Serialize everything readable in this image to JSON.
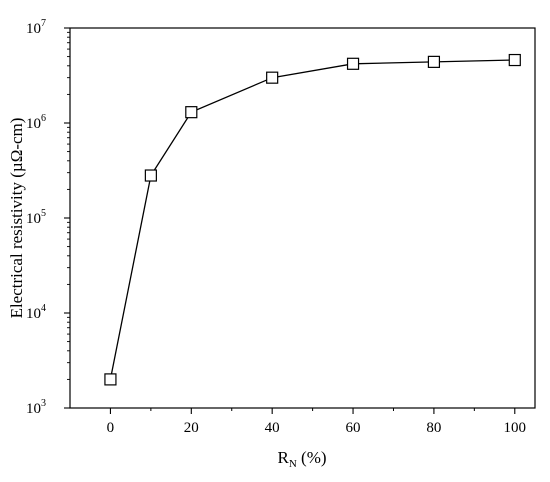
{
  "chart_data": {
    "type": "line",
    "title": "",
    "xlabel": {
      "main": "R",
      "sub": "N",
      "rest": " (%)"
    },
    "ylabel": "Electrical resistivity (µΩ-cm)",
    "xlim": [
      -10,
      105
    ],
    "ylim": [
      1000,
      10000000
    ],
    "yscale": "log",
    "x_ticks": [
      0,
      20,
      40,
      60,
      80,
      100
    ],
    "x_tick_labels": [
      "0",
      "20",
      "40",
      "60",
      "80",
      "100"
    ],
    "y_ticks": [
      {
        "value": 1000,
        "base": "10",
        "exp": "3"
      },
      {
        "value": 10000,
        "base": "10",
        "exp": "4"
      },
      {
        "value": 100000,
        "base": "10",
        "exp": "5"
      },
      {
        "value": 1000000,
        "base": "10",
        "exp": "6"
      },
      {
        "value": 10000000,
        "base": "10",
        "exp": "7"
      }
    ],
    "marker": "open-square",
    "grid": false,
    "series": [
      {
        "x": [
          0,
          10,
          20,
          40,
          60,
          80,
          100
        ],
        "y": [
          2000,
          280000,
          1300000,
          3000000,
          4200000,
          4400000,
          4600000
        ]
      }
    ]
  }
}
